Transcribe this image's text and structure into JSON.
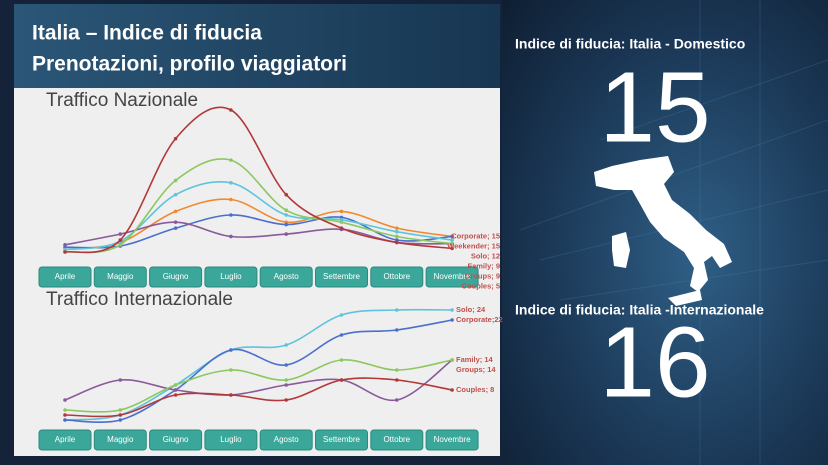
{
  "header": {
    "title": "Italia – Indice di fiducia",
    "subtitle": "Prenotazioni, profilo viaggiatori"
  },
  "chart_data": [
    {
      "type": "line",
      "title": "Traffico Nazionale",
      "categories": [
        "Aprile",
        "Maggio",
        "Giugno",
        "Luglio",
        "Agosto",
        "Settembre",
        "Ottobre",
        "Novembre"
      ],
      "series": [
        {
          "name": "Corporate",
          "color": "#f08a30",
          "values": [
            4,
            10,
            36,
            46,
            27,
            36,
            22,
            15
          ],
          "value_labels": [
            null,
            null,
            null,
            null,
            null,
            null,
            null,
            "Corporate; 15"
          ]
        },
        {
          "name": "Weekender",
          "color": "#4a6fcf",
          "values": [
            6,
            7,
            22,
            33,
            25,
            31,
            12,
            15
          ],
          "value_labels": [
            null,
            null,
            null,
            null,
            null,
            null,
            null,
            "Weekender; 15"
          ]
        },
        {
          "name": "Solo",
          "color": "#5ec3dc",
          "values": [
            4,
            11,
            50,
            60,
            33,
            29,
            19,
            12
          ],
          "value_labels": [
            null,
            null,
            null,
            null,
            null,
            null,
            null,
            "Solo; 12"
          ]
        },
        {
          "name": "Family",
          "color": "#8a5a9a",
          "values": [
            8,
            17,
            27,
            15,
            17,
            21,
            10,
            9
          ],
          "value_labels": [
            null,
            null,
            null,
            null,
            null,
            null,
            null,
            "Family; 9"
          ]
        },
        {
          "name": "Groups",
          "color": "#8cc860",
          "values": [
            2,
            8,
            62,
            79,
            37,
            27,
            15,
            9
          ],
          "value_labels": [
            null,
            null,
            null,
            null,
            null,
            null,
            null,
            "Groups; 9"
          ]
        },
        {
          "name": "Couples",
          "color": "#b2383a",
          "values": [
            2,
            12,
            97,
            121,
            50,
            22,
            10,
            5
          ],
          "value_labels": [
            null,
            null,
            null,
            null,
            null,
            null,
            null,
            "Couples; 5"
          ]
        }
      ]
    },
    {
      "type": "line",
      "title": "Traffico Internazionale",
      "categories": [
        "Aprile",
        "Maggio",
        "Giugno",
        "Luglio",
        "Agosto",
        "Settembre",
        "Ottobre",
        "Novembre"
      ],
      "series": [
        {
          "name": "Solo",
          "color": "#5ec3dc",
          "values": [
            2,
            3,
            9,
            16,
            17,
            23,
            24,
            24
          ],
          "value_labels": [
            null,
            null,
            null,
            null,
            null,
            null,
            null,
            "Solo; 24"
          ]
        },
        {
          "name": "Corporate",
          "color": "#4a6fcf",
          "values": [
            2,
            2,
            8,
            16,
            13,
            19,
            20,
            22
          ],
          "value_labels": [
            null,
            null,
            null,
            null,
            null,
            null,
            null,
            "Corporate;22"
          ]
        },
        {
          "name": "Family",
          "color": "#8a5a9a",
          "values": [
            6,
            10,
            8,
            7,
            9,
            10,
            6,
            14
          ],
          "value_labels": [
            null,
            null,
            null,
            null,
            null,
            null,
            null,
            "Family; 14"
          ]
        },
        {
          "name": "Groups",
          "color": "#8cc860",
          "values": [
            4,
            4,
            9,
            12,
            10,
            14,
            12,
            14
          ],
          "value_labels": [
            null,
            null,
            null,
            null,
            null,
            null,
            null,
            "Groups; 14"
          ]
        },
        {
          "name": "Couples",
          "color": "#b2383a",
          "values": [
            3,
            3,
            7,
            7,
            6,
            10,
            10,
            8
          ],
          "value_labels": [
            null,
            null,
            null,
            null,
            null,
            null,
            null,
            "Couples; 8"
          ]
        }
      ]
    }
  ],
  "kpis": [
    {
      "label": "Indice di fiducia: Italia - Domestico",
      "value": 15
    },
    {
      "label": "Indice di fiducia: Italia -Internazionale",
      "value": 16
    }
  ]
}
